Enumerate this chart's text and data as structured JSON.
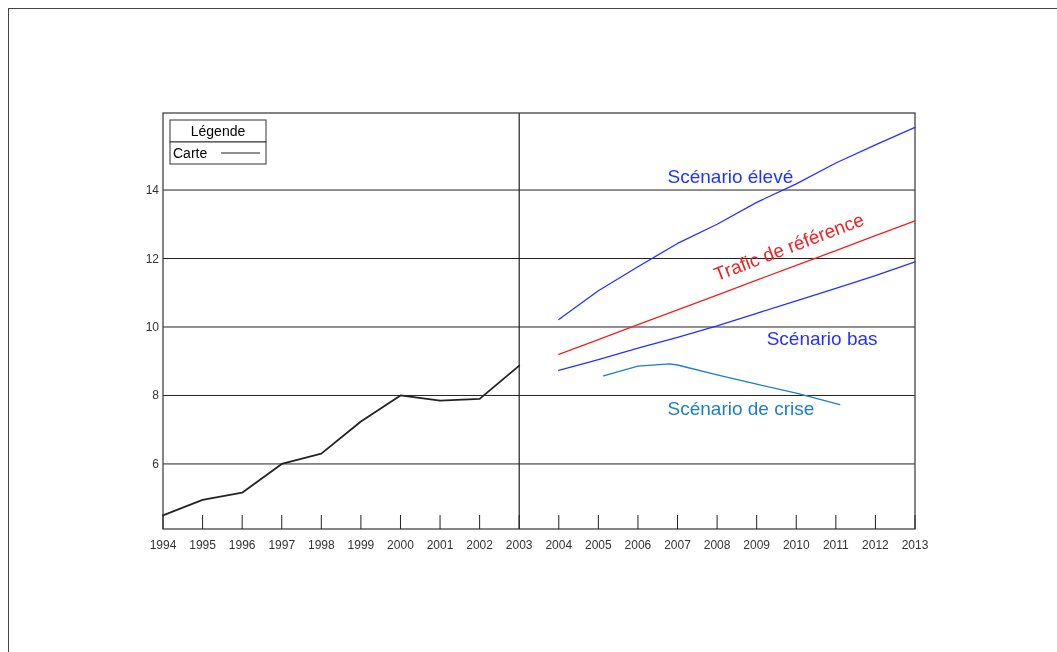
{
  "chart_data": {
    "type": "line",
    "legend_title": "Légende",
    "legend": "top left",
    "grid": "y",
    "ylim": [
      4.1,
      16.25
    ],
    "yticks": [
      6,
      8,
      10,
      12,
      14
    ],
    "xlim": [
      1994,
      2013
    ],
    "xticks": [
      1994,
      1995,
      1996,
      1997,
      1998,
      1999,
      2000,
      2001,
      2002,
      2003,
      2004,
      2005,
      2006,
      2007,
      2008,
      2009,
      2010,
      2011,
      2012,
      2013
    ],
    "ref_lines": [
      {
        "axis": "x",
        "value": 2003,
        "color": "#222222"
      }
    ],
    "series": [
      {
        "name": "Carte",
        "color": "#222222",
        "x": [
          1994,
          1995,
          1996,
          1997,
          1998,
          1999,
          2000,
          2001,
          2002,
          2003
        ],
        "values": [
          4.5,
          4.95,
          5.16,
          6.0,
          6.3,
          7.24,
          8.0,
          7.85,
          7.9,
          8.87
        ]
      },
      {
        "name": "Scénario élevé",
        "color": "#2233ff",
        "x": [
          2004,
          2005,
          2006,
          2007,
          2008,
          2009,
          2010,
          2011,
          2012,
          2013
        ],
        "values": [
          10.22,
          11.06,
          11.76,
          12.44,
          13.0,
          13.64,
          14.18,
          14.79,
          15.32,
          15.83
        ]
      },
      {
        "name": "Trafic de référence",
        "color": "#ee2222",
        "x": [
          2004,
          2005,
          2006,
          2007,
          2008,
          2009,
          2010,
          2011,
          2012,
          2013
        ],
        "values": [
          9.2,
          9.63,
          10.07,
          10.5,
          10.93,
          11.37,
          11.8,
          12.23,
          12.67,
          13.1
        ]
      },
      {
        "name": "Scénario bas",
        "color": "#2233ff",
        "x": [
          2004,
          2005,
          2006,
          2007,
          2008,
          2009,
          2010,
          2011,
          2012,
          2013
        ],
        "values": [
          8.73,
          9.05,
          9.38,
          9.7,
          10.03,
          10.4,
          10.76,
          11.13,
          11.5,
          11.9
        ]
      },
      {
        "name": "Scénario de crise",
        "color": "#1a7fc8",
        "x": [
          2005.13,
          2006,
          2006.8,
          2007,
          2008,
          2009,
          2010,
          2011.1
        ],
        "values": [
          8.57,
          8.86,
          8.92,
          8.89,
          8.6,
          8.33,
          8.07,
          7.73
        ]
      }
    ]
  }
}
